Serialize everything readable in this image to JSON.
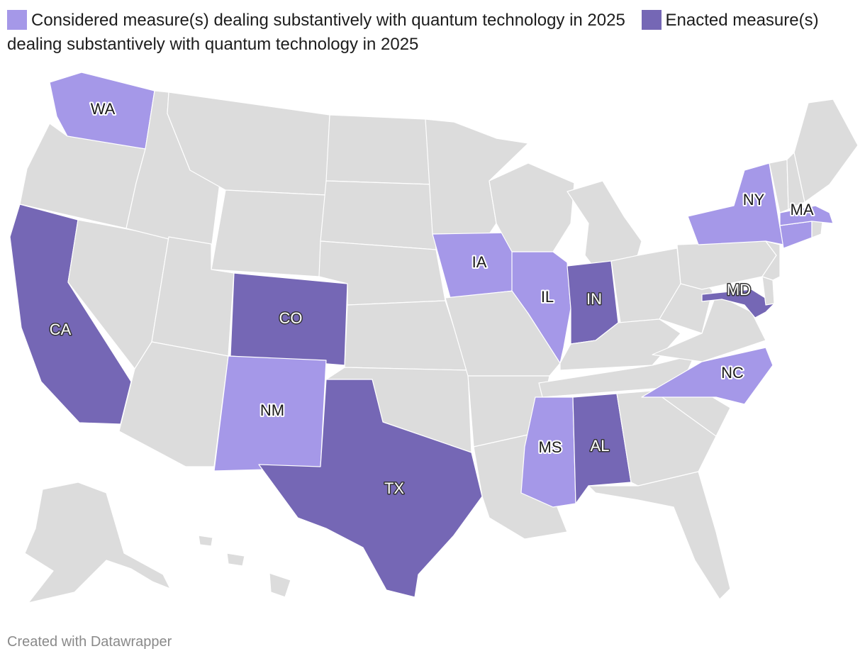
{
  "legend": {
    "considered": {
      "label": "Considered measure(s) dealing substantively with quantum technology in 2025",
      "color": "#a598e8"
    },
    "enacted": {
      "label": "Enacted measure(s) dealing substantively with quantum technology in 2025",
      "color": "#7567b5"
    }
  },
  "colors": {
    "none": "#dcdcdc",
    "border": "#ffffff"
  },
  "states": [
    {
      "code": "WA",
      "status": "considered"
    },
    {
      "code": "CA",
      "status": "enacted"
    },
    {
      "code": "CO",
      "status": "enacted"
    },
    {
      "code": "NM",
      "status": "considered"
    },
    {
      "code": "TX",
      "status": "enacted"
    },
    {
      "code": "IA",
      "status": "considered"
    },
    {
      "code": "IL",
      "status": "considered"
    },
    {
      "code": "IN",
      "status": "enacted"
    },
    {
      "code": "MS",
      "status": "considered"
    },
    {
      "code": "AL",
      "status": "enacted"
    },
    {
      "code": "NC",
      "status": "considered"
    },
    {
      "code": "MD",
      "status": "enacted"
    },
    {
      "code": "NY",
      "status": "considered"
    },
    {
      "code": "MA",
      "status": "considered"
    },
    {
      "code": "CT",
      "status": "considered"
    }
  ],
  "credit": "Created with Datawrapper"
}
